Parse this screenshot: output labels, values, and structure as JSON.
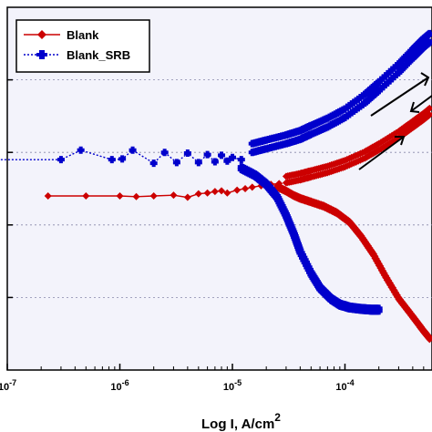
{
  "chart_data": {
    "type": "line",
    "title": "",
    "xlabel": "Log I, A/cm2",
    "xlabel_main": "Log I, A/cm",
    "xlabel_sup": "2",
    "ylabel": "",
    "x_scale": "log",
    "xlim": [
      1e-07,
      0.001
    ],
    "x_tick_values": [
      1e-07,
      1e-06,
      1e-05,
      0.0001
    ],
    "x_tick_labels": [
      {
        "base": "10",
        "exp": "-7"
      },
      {
        "base": "10",
        "exp": "-6"
      },
      {
        "base": "10",
        "exp": "-5"
      },
      {
        "base": "10",
        "exp": "-4"
      }
    ],
    "ylim": [
      0,
      5
    ],
    "y_tick_values": [
      1,
      2,
      3,
      4
    ],
    "grid": "horizontal dotted",
    "legend_position": "top-left",
    "series": [
      {
        "name": "Blank",
        "color": "#cc0000",
        "marker": "diamond",
        "style": "solid",
        "flat_x": [
          2.3e-07,
          5e-07,
          1e-06,
          1.4e-06,
          2e-06,
          3e-06,
          4e-06,
          5e-06,
          6e-06,
          7e-06,
          8e-06,
          9e-06,
          1.1e-05,
          1.3e-05,
          1.5e-05,
          1.8e-05,
          2.2e-05,
          2.6e-05
        ],
        "flat_y": [
          2.4,
          2.4,
          2.4,
          2.39,
          2.4,
          2.41,
          2.38,
          2.43,
          2.44,
          2.46,
          2.47,
          2.44,
          2.48,
          2.5,
          2.52,
          2.54,
          2.56,
          2.57
        ],
        "anodic_x": [
          3e-05,
          4e-05,
          5e-05,
          7e-05,
          0.0001,
          0.00015,
          0.0002,
          0.0003,
          0.0004,
          0.0005,
          0.0006,
          0.0008,
          0.001
        ],
        "anodic_y": [
          2.58,
          2.62,
          2.66,
          2.72,
          2.8,
          2.92,
          3.03,
          3.2,
          3.34,
          3.45,
          3.55,
          3.7,
          3.8
        ],
        "cathodic_x": [
          2.5e-05,
          3e-05,
          3.5e-05,
          4e-05,
          5e-05,
          6.5e-05,
          8.5e-05,
          0.00011,
          0.00014,
          0.00018,
          0.00023,
          0.0003,
          0.0004,
          0.0005,
          0.0006
        ],
        "cathodic_y": [
          2.54,
          2.48,
          2.42,
          2.38,
          2.33,
          2.27,
          2.18,
          2.05,
          1.85,
          1.6,
          1.3,
          1.0,
          0.75,
          0.55,
          0.4
        ]
      },
      {
        "name": "Blank_SRB",
        "color": "#0000cc",
        "marker": "plus",
        "style": "dotted",
        "flat_x": [
          7e-08,
          3e-07,
          4.5e-07,
          8.5e-07,
          1.05e-06,
          1.3e-06,
          2e-06,
          2.5e-06,
          3.2e-06,
          4e-06,
          5e-06,
          6e-06,
          7e-06,
          8e-06,
          9e-06,
          1e-05,
          1.2e-05
        ],
        "flat_y": [
          2.9,
          2.9,
          3.03,
          2.9,
          2.91,
          3.03,
          2.85,
          3.0,
          2.86,
          2.99,
          2.86,
          2.97,
          2.87,
          2.96,
          2.88,
          2.93,
          2.9
        ],
        "anodic_x": [
          1.5e-05,
          2e-05,
          3e-05,
          4e-05,
          5e-05,
          7e-05,
          0.0001,
          0.00015,
          0.0002,
          0.0003,
          0.0004,
          0.0005,
          0.0006,
          0.0008,
          0.001
        ],
        "anodic_y": [
          3.0,
          3.05,
          3.12,
          3.18,
          3.25,
          3.35,
          3.48,
          3.68,
          3.85,
          4.1,
          4.3,
          4.45,
          4.55,
          4.7,
          4.8
        ],
        "cathodic_x": [
          1.2e-05,
          1.6e-05,
          2e-05,
          2.5e-05,
          3e-05,
          3.5e-05,
          4e-05,
          5e-05,
          6e-05,
          7.5e-05,
          9e-05,
          0.00011,
          0.00014,
          0.00017,
          0.0002
        ],
        "cathodic_y": [
          2.8,
          2.7,
          2.58,
          2.4,
          2.15,
          1.9,
          1.65,
          1.35,
          1.15,
          1.0,
          0.92,
          0.88,
          0.86,
          0.85,
          0.85
        ]
      }
    ]
  }
}
